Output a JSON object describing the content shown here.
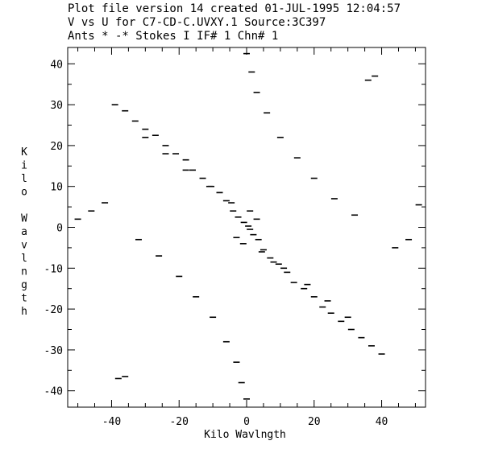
{
  "header": {
    "line1": "Plot file version  14  created 01-JUL-1995 12:04:57",
    "line2": "V vs U for C7-CD-C.UVXY.1   Source:3C397",
    "line3": "Ants  *  -*      Stokes I    IF#  1 Chn#    1"
  },
  "chart_data": {
    "type": "scatter",
    "title": "V vs U for C7-CD-C.UVXY.1   Source:3C397",
    "xlabel": "Kilo Wavlngth",
    "ylabel": "Kilo Wavlngth",
    "xlim": [
      -53,
      53
    ],
    "ylim": [
      -44,
      44
    ],
    "x_ticks": [
      -40,
      -20,
      0,
      20,
      40
    ],
    "y_ticks": [
      -40,
      -30,
      -20,
      -10,
      0,
      10,
      20,
      30,
      40
    ],
    "x_tick_labels": [
      "-40",
      "-20",
      "0",
      "20",
      "40"
    ],
    "y_tick_labels": [
      "-40",
      "-30",
      "-20",
      "-10",
      "0",
      "10",
      "20",
      "30",
      "40"
    ],
    "grid": false,
    "marker": "short horizontal dash",
    "color": "#000000",
    "series": [
      {
        "description_of_points": "uv coverage, symmetric about origin",
        "x": [
          0.5,
          1.0,
          -0.8,
          2.0,
          -2.5,
          3.5,
          -4.0,
          5.0,
          -6.0,
          7.0,
          -8.0,
          9.5,
          -10.5,
          12.0,
          -13.0,
          14.0,
          -16.0,
          17.0,
          -18.0,
          20.0,
          -21.0,
          22.5,
          -24.0,
          25.0,
          -27.0,
          28.0,
          -30.0,
          31.0,
          -33.0,
          34.0,
          -36.0,
          37.0,
          -39.0,
          40.0,
          -42.0,
          44.0,
          -46.0,
          48.0,
          -50.0,
          51.0,
          0.0,
          0.0,
          1.5,
          -1.5,
          3.0,
          -3.0,
          6.0,
          -6.0,
          10.0,
          -10.0,
          15.0,
          -15.0,
          20.0,
          -20.0,
          26.0,
          -26.0,
          32.0,
          -32.0,
          36.0,
          -36.0,
          -3.0,
          3.0,
          -1.0,
          1.0,
          4.5,
          -4.5,
          8.0,
          -8.0,
          11.0,
          -11.0,
          18.0,
          -18.0,
          24.0,
          -24.0,
          30.0,
          -30.0,
          38.0,
          -38.0
        ],
        "y": [
          0.3,
          -0.5,
          1.2,
          -1.8,
          2.5,
          -3.0,
          4.0,
          -5.5,
          6.5,
          -7.5,
          8.5,
          -9.0,
          10.0,
          -11.0,
          12.0,
          -13.5,
          14.0,
          -15.0,
          16.5,
          -17.0,
          18.0,
          -19.5,
          20.0,
          -21.0,
          22.5,
          -23.0,
          24.0,
          -25.0,
          26.0,
          -27.0,
          28.5,
          -29.0,
          30.0,
          -31.0,
          6.0,
          -5.0,
          4.0,
          -3.0,
          2.0,
          5.5,
          42.5,
          -42.0,
          38.0,
          -38.0,
          33.0,
          -33.0,
          28.0,
          -28.0,
          22.0,
          -22.0,
          17.0,
          -17.0,
          12.0,
          -12.0,
          7.0,
          -7.0,
          3.0,
          -3.0,
          36.0,
          -36.5,
          -2.5,
          2.0,
          -4.0,
          4.0,
          -6.0,
          6.0,
          -8.5,
          8.5,
          -10.0,
          10.0,
          -14.0,
          14.0,
          -18.0,
          18.0,
          -22.0,
          22.0,
          37.0,
          -37.0
        ]
      }
    ]
  }
}
